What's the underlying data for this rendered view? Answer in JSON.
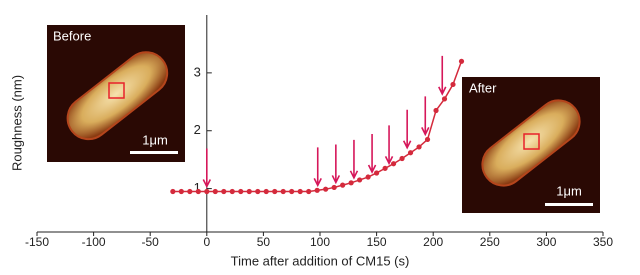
{
  "chart_data": {
    "type": "line",
    "x_label": "Time after addition of CM15 (s)",
    "y_label": "Roughness (nm)",
    "x": [
      -30,
      -22.5,
      -15,
      -7.5,
      0,
      7.5,
      15,
      22.5,
      30,
      37.5,
      45,
      52.5,
      60,
      67.5,
      75,
      82.5,
      90,
      97.5,
      105,
      112.5,
      120,
      127.5,
      135,
      142.5,
      150,
      157.5,
      165,
      172.5,
      180,
      187.5,
      195,
      202.5,
      210,
      217.5,
      225
    ],
    "series": [
      {
        "color": "#d42a3c",
        "values": [
          0.95,
          0.95,
          0.95,
          0.95,
          0.95,
          0.95,
          0.95,
          0.95,
          0.95,
          0.95,
          0.95,
          0.95,
          0.95,
          0.95,
          0.95,
          0.95,
          0.95,
          0.97,
          0.99,
          1.02,
          1.06,
          1.1,
          1.15,
          1.2,
          1.27,
          1.35,
          1.43,
          1.52,
          1.62,
          1.72,
          1.85,
          2.35,
          2.55,
          2.8,
          3.2
        ]
      }
    ],
    "arrows": [
      0,
      98,
      114,
      130,
      146,
      161,
      177,
      193,
      208
    ],
    "arrow_color": "#d6175a",
    "xlim": [
      -150,
      350
    ],
    "xticks": [
      -150,
      -100,
      -50,
      0,
      50,
      100,
      150,
      200,
      250,
      300,
      350
    ],
    "ylim": [
      0.25,
      4
    ],
    "yticks": [
      1,
      2,
      3
    ],
    "insets": [
      {
        "label": "Before",
        "scale": "1μm"
      },
      {
        "label": "After",
        "scale": "1μm"
      }
    ]
  }
}
